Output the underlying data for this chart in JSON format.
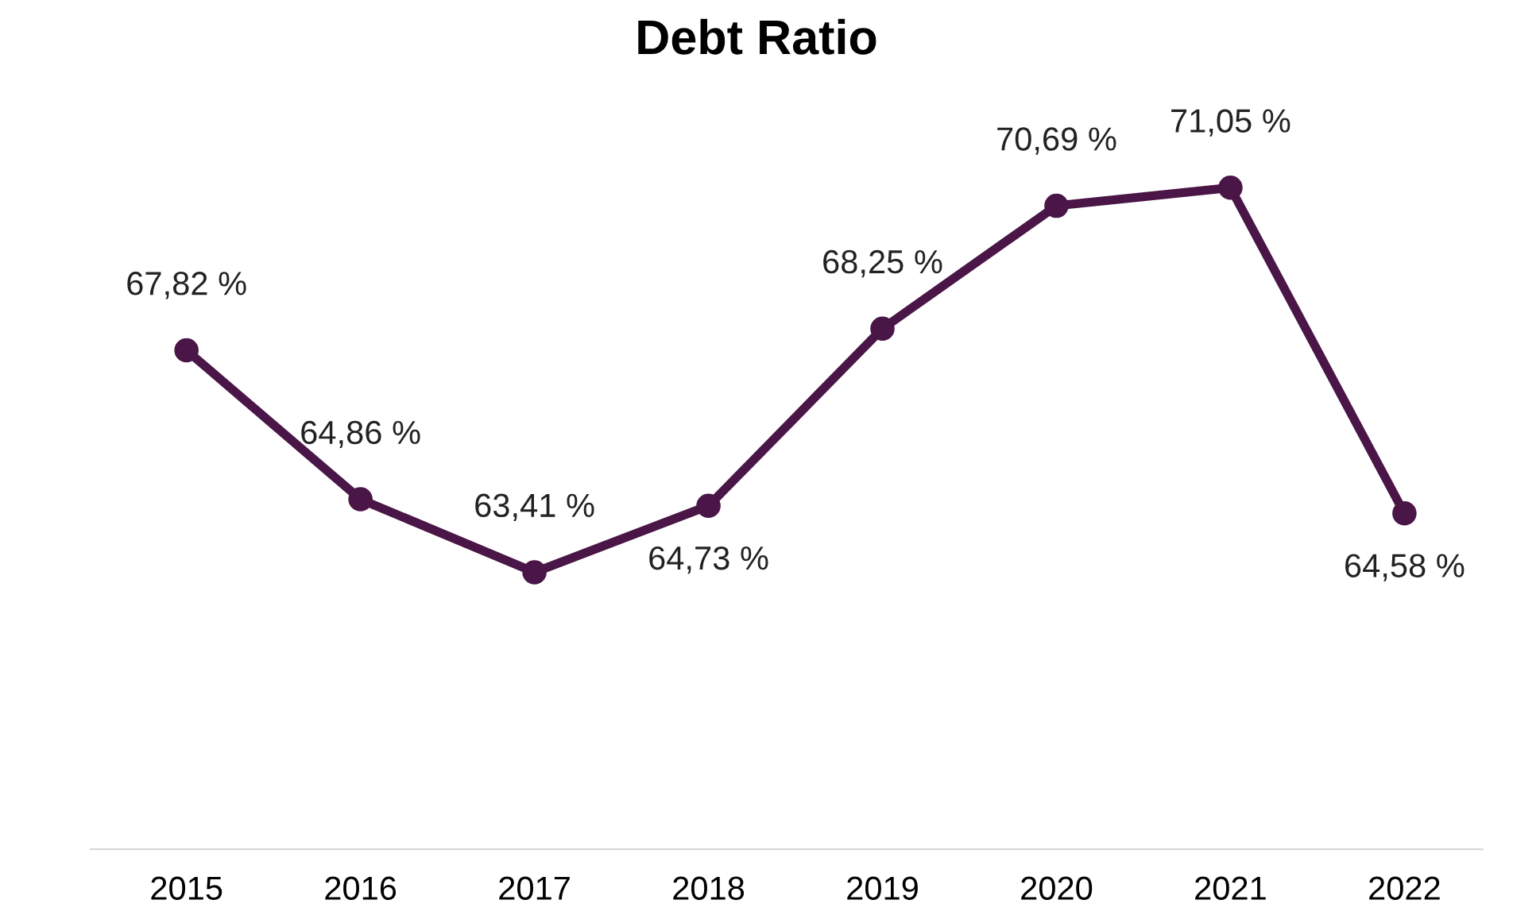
{
  "chart_data": {
    "type": "line",
    "title": "Debt Ratio",
    "categories": [
      "2015",
      "2016",
      "2017",
      "2018",
      "2019",
      "2020",
      "2021",
      "2022"
    ],
    "series": [
      {
        "color": "#4a1547",
        "values": [
          67.82,
          64.86,
          63.41,
          64.73,
          68.25,
          70.69,
          71.05,
          64.58
        ],
        "value_labels": [
          "67,82 %",
          "64,86 %",
          "63,41 %",
          "64,73 %",
          "68,25 %",
          "70,69 %",
          "71,05 %",
          "64,58 %"
        ]
      }
    ],
    "tick_labels": "x",
    "grid": false,
    "legend": false,
    "marker": "circle",
    "line_style": "solid"
  }
}
